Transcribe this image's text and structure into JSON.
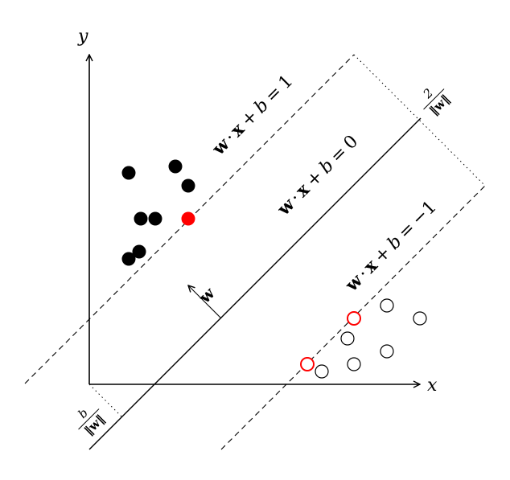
{
  "axes": {
    "x_label": "x",
    "y_label": "y"
  },
  "hyperplanes": {
    "positive": {
      "w": "w",
      "dot": "·",
      "x": "x",
      "plus": "+",
      "b": "b",
      "eq": "=",
      "rhs": "1"
    },
    "decision": {
      "w": "w",
      "dot": "·",
      "x": "x",
      "plus": "+",
      "b": "b",
      "eq": "=",
      "rhs": "0"
    },
    "negative": {
      "w": "w",
      "dot": "·",
      "x": "x",
      "plus": "+",
      "b": "b",
      "eq": "=",
      "rhs": "−1"
    }
  },
  "normal_vector": {
    "label": "w"
  },
  "margin": {
    "numerator": "2",
    "denominator": "‖w‖"
  },
  "offset": {
    "numerator": "b",
    "denominator": "‖w‖"
  },
  "colors": {
    "line": "#000000",
    "support_vector": "#ff0000",
    "positive_point": "#000000",
    "negative_point": "#ffffff"
  },
  "points": {
    "positive_class": [
      {
        "id": "p1",
        "support_vector": false
      },
      {
        "id": "p2",
        "support_vector": false
      },
      {
        "id": "p3",
        "support_vector": false
      },
      {
        "id": "p4",
        "support_vector": false
      },
      {
        "id": "p5",
        "support_vector": false
      },
      {
        "id": "p6",
        "support_vector": true
      },
      {
        "id": "p7",
        "support_vector": false
      },
      {
        "id": "p8",
        "support_vector": false
      }
    ],
    "negative_class": [
      {
        "id": "n1",
        "support_vector": false
      },
      {
        "id": "n2",
        "support_vector": true
      },
      {
        "id": "n3",
        "support_vector": false
      },
      {
        "id": "n4",
        "support_vector": false
      },
      {
        "id": "n5",
        "support_vector": true
      },
      {
        "id": "n6",
        "support_vector": false
      },
      {
        "id": "n7",
        "support_vector": false
      },
      {
        "id": "n8",
        "support_vector": false
      }
    ]
  }
}
